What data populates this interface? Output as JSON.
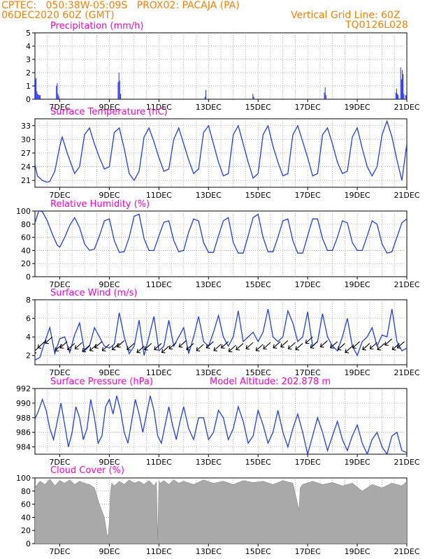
{
  "header": {
    "line1_left": "CPTEC:   050:38W-05:09S   PROX02: PACAJA (PA)",
    "line2_left": "06DEC2020 60Z (GMT)",
    "line2_right": "Vertical Grid Line: 60Z",
    "line3_right": "TQ0126L028"
  },
  "colors": {
    "header": "#ff7f00",
    "title": "#ff00cc",
    "series": "#1e3cff",
    "bars": "#1e2bff",
    "cloud": "#a9a9a9",
    "arrow": "#000000"
  },
  "x_tick_labels": [
    "7DEC",
    "9DEC",
    "11DEC",
    "13DEC",
    "15DEC",
    "17DEC",
    "19DEC",
    "21DEC"
  ],
  "chart_data": [
    {
      "id": "precip",
      "type": "bar",
      "title": "Precipitation (mm/h)",
      "ylim": [
        0,
        5
      ],
      "yticks": [
        "0",
        "1",
        "2",
        "3",
        "4",
        "5"
      ],
      "grid": true,
      "values": [
        1.5,
        1.6,
        0.6,
        0.4,
        0.35,
        0.3,
        0.3,
        0,
        0,
        0,
        0,
        0,
        0,
        0,
        0,
        0,
        0,
        0,
        0,
        0,
        0,
        0,
        0,
        0,
        0,
        0,
        1.0,
        1.2,
        0.4,
        0.2,
        0,
        0,
        0,
        0,
        0,
        0,
        0,
        0,
        0,
        0,
        0,
        0,
        0,
        0,
        0,
        0,
        0,
        0,
        0,
        0,
        0,
        0,
        0,
        0,
        0,
        0,
        0,
        0,
        0,
        0,
        0,
        0,
        0,
        0,
        0,
        0,
        0,
        0,
        0,
        0,
        0,
        0,
        0,
        0,
        0,
        0,
        0,
        0,
        0,
        0,
        0,
        0,
        0,
        0,
        0,
        0,
        0,
        0,
        0,
        0,
        0,
        0,
        0,
        0,
        0,
        0,
        0,
        0,
        0,
        0,
        0,
        0,
        1.3,
        2.0,
        1.4,
        0.4,
        0,
        0,
        0,
        0,
        0,
        0,
        0,
        0,
        0,
        0,
        0,
        0,
        0,
        0,
        0,
        0,
        0,
        0,
        0,
        0,
        0,
        0,
        0,
        0,
        0,
        0,
        0,
        0,
        0,
        0,
        0,
        0,
        0,
        0,
        0,
        0,
        0,
        0,
        0,
        0,
        0,
        0,
        0,
        0,
        0,
        0,
        0,
        0,
        0,
        0,
        0,
        0,
        0,
        0,
        0,
        0,
        0,
        0,
        0,
        0,
        0,
        0,
        0,
        0,
        0,
        0,
        0,
        0,
        0,
        0,
        0,
        0,
        0,
        0,
        0,
        0,
        0,
        0,
        0,
        0,
        0,
        0,
        0,
        0,
        0,
        0,
        0,
        0,
        0,
        0,
        0,
        0,
        0,
        0,
        0,
        0,
        0,
        0,
        0,
        0,
        0,
        0,
        0,
        0.2,
        0.7,
        0,
        0,
        0,
        0,
        0,
        0,
        0,
        0,
        0,
        0,
        0,
        0,
        0,
        0,
        0,
        0,
        0,
        0,
        0,
        0,
        0,
        0,
        0,
        0,
        0,
        0,
        0,
        0,
        0,
        0,
        0,
        0,
        0,
        0,
        0,
        0,
        0,
        0,
        0,
        0,
        0,
        0,
        0,
        0,
        0,
        0,
        0,
        0,
        0,
        0,
        0,
        0,
        0,
        0,
        0,
        0,
        0,
        0.4,
        0.2,
        0,
        0,
        0,
        0,
        0,
        0,
        0,
        0,
        0,
        0,
        0,
        0,
        0,
        0,
        0,
        0,
        0,
        0,
        0,
        0,
        0,
        0,
        0,
        0,
        0,
        0,
        0,
        0,
        0,
        0,
        0,
        0,
        0,
        0,
        0,
        0,
        0,
        0,
        0,
        0,
        0,
        0,
        0,
        0,
        0,
        0,
        0,
        0,
        0,
        0,
        0,
        0,
        0,
        0,
        0,
        0,
        0,
        0,
        0,
        0,
        0,
        0,
        0,
        0,
        0,
        0,
        0,
        0,
        0,
        0,
        0,
        0,
        0,
        0,
        0,
        0,
        0,
        0,
        0,
        0,
        0,
        0,
        0,
        0,
        0,
        0,
        0.5,
        0.9,
        0.3,
        0,
        0,
        0,
        0,
        0,
        0,
        0,
        0,
        0,
        0,
        0,
        0,
        0,
        0,
        0,
        0,
        0,
        0,
        0,
        0,
        0,
        0,
        0,
        0,
        0,
        0,
        0,
        0,
        0,
        0,
        0,
        0,
        0,
        0,
        0,
        0,
        0,
        0,
        0,
        0,
        0,
        0,
        0,
        0,
        0,
        0,
        0,
        0,
        0,
        0,
        0,
        0,
        0,
        0,
        0,
        0,
        0,
        0,
        0,
        0,
        0,
        0,
        0,
        0,
        0,
        0,
        0,
        0,
        0,
        0,
        0,
        0,
        0,
        0,
        0,
        0,
        0,
        0,
        0,
        0,
        0,
        0,
        0,
        0,
        0,
        0.5,
        0.8,
        0.4,
        0.3,
        0,
        0,
        2.4,
        1.5,
        2.2,
        1.9,
        0.4,
        0,
        0.3,
        0.3
      ]
    },
    {
      "id": "temp",
      "type": "line",
      "title": "Surface Temperature (nC)",
      "ylim": [
        19.5,
        34.5
      ],
      "yticks": [
        "21",
        "24",
        "27",
        "30",
        "33"
      ],
      "ytick_values": [
        21,
        24,
        27,
        30,
        33
      ],
      "grid": true,
      "x": [
        6.0,
        6.1,
        6.3,
        6.5,
        6.6,
        6.8,
        7.0,
        7.1,
        7.3,
        7.5,
        7.6,
        7.8,
        8.0,
        8.2,
        8.4,
        8.6,
        8.8,
        9.0,
        9.2,
        9.4,
        9.6,
        9.8,
        10.0,
        10.2,
        10.4,
        10.6,
        10.8,
        11.0,
        11.2,
        11.4,
        11.6,
        11.8,
        12.0,
        12.2,
        12.4,
        12.6,
        12.8,
        13.0,
        13.2,
        13.4,
        13.6,
        13.8,
        14.0,
        14.2,
        14.4,
        14.6,
        14.8,
        15.0,
        15.2,
        15.4,
        15.6,
        15.8,
        16.0,
        16.2,
        16.4,
        16.6,
        16.8,
        17.0,
        17.2,
        17.4,
        17.6,
        17.8,
        18.0,
        18.2,
        18.4,
        18.6,
        18.8,
        19.0,
        19.2,
        19.4,
        19.6,
        19.8,
        20.0,
        20.2,
        20.4,
        20.6,
        20.8,
        21.0
      ],
      "values": [
        24.5,
        22.0,
        21.0,
        20.6,
        20.8,
        23.0,
        28.5,
        30.5,
        27.0,
        24.0,
        22.5,
        24.0,
        31.0,
        32.5,
        29.0,
        26.0,
        23.5,
        24.0,
        31.5,
        32.5,
        28.0,
        22.5,
        21.0,
        23.0,
        30.5,
        32.5,
        29.5,
        26.0,
        23.0,
        23.5,
        30.0,
        32.5,
        29.0,
        25.5,
        22.5,
        23.5,
        31.5,
        33.0,
        29.0,
        25.0,
        22.0,
        22.5,
        31.0,
        33.0,
        29.0,
        25.0,
        21.5,
        22.5,
        31.0,
        33.0,
        28.5,
        25.0,
        22.0,
        22.5,
        31.0,
        33.0,
        29.5,
        26.0,
        22.0,
        22.5,
        31.0,
        32.5,
        29.0,
        25.0,
        22.5,
        23.0,
        30.5,
        32.5,
        28.0,
        24.0,
        22.0,
        24.0,
        31.0,
        34.0,
        30.5,
        25.5,
        21.0,
        29.0
      ]
    },
    {
      "id": "rh",
      "type": "line",
      "title": "Relative Humidity (%)",
      "ylim": [
        0,
        100
      ],
      "yticks": [
        "0",
        "20",
        "40",
        "60",
        "80",
        "100"
      ],
      "ytick_values": [
        0,
        20,
        40,
        60,
        80,
        100
      ],
      "grid": true,
      "x": [
        6.0,
        6.15,
        6.3,
        6.5,
        6.7,
        6.9,
        7.0,
        7.2,
        7.4,
        7.6,
        7.8,
        8.0,
        8.2,
        8.4,
        8.6,
        8.8,
        9.0,
        9.2,
        9.4,
        9.6,
        9.8,
        10.0,
        10.2,
        10.4,
        10.6,
        10.8,
        11.0,
        11.2,
        11.4,
        11.6,
        11.8,
        12.0,
        12.2,
        12.4,
        12.6,
        12.8,
        13.0,
        13.2,
        13.4,
        13.6,
        13.8,
        14.0,
        14.2,
        14.4,
        14.6,
        14.8,
        15.0,
        15.2,
        15.4,
        15.6,
        15.8,
        16.0,
        16.2,
        16.4,
        16.6,
        16.8,
        17.0,
        17.2,
        17.4,
        17.6,
        17.8,
        18.0,
        18.2,
        18.4,
        18.6,
        18.8,
        19.0,
        19.2,
        19.4,
        19.6,
        19.8,
        20.0,
        20.2,
        20.4,
        20.6,
        20.8,
        21.0
      ],
      "values": [
        82,
        100,
        99,
        85,
        65,
        48,
        45,
        60,
        78,
        90,
        75,
        50,
        40,
        42,
        62,
        85,
        88,
        55,
        37,
        38,
        60,
        92,
        95,
        58,
        40,
        40,
        62,
        83,
        85,
        55,
        38,
        40,
        68,
        88,
        85,
        52,
        37,
        37,
        62,
        85,
        90,
        52,
        36,
        36,
        62,
        90,
        95,
        60,
        38,
        38,
        60,
        85,
        88,
        55,
        36,
        36,
        62,
        88,
        88,
        58,
        40,
        40,
        60,
        85,
        82,
        52,
        40,
        40,
        62,
        85,
        80,
        50,
        36,
        38,
        60,
        82,
        88
      ]
    },
    {
      "id": "wind",
      "type": "line",
      "title": "Surface Wind (m/s)",
      "ylim": [
        1,
        8
      ],
      "yticks": [
        "2",
        "4",
        "6",
        "8"
      ],
      "ytick_values": [
        2,
        4,
        6,
        8
      ],
      "grid": true,
      "x": [
        6.0,
        6.2,
        6.4,
        6.6,
        6.8,
        7.0,
        7.2,
        7.4,
        7.6,
        7.8,
        8.0,
        8.2,
        8.4,
        8.6,
        8.8,
        9.0,
        9.2,
        9.4,
        9.6,
        9.8,
        10.0,
        10.2,
        10.4,
        10.6,
        10.8,
        11.0,
        11.2,
        11.4,
        11.6,
        11.8,
        12.0,
        12.2,
        12.4,
        12.6,
        12.8,
        13.0,
        13.2,
        13.4,
        13.6,
        13.8,
        14.0,
        14.2,
        14.4,
        14.6,
        14.8,
        15.0,
        15.2,
        15.4,
        15.6,
        15.8,
        16.0,
        16.2,
        16.4,
        16.6,
        16.8,
        17.0,
        17.2,
        17.4,
        17.6,
        17.8,
        18.0,
        18.2,
        18.4,
        18.6,
        18.8,
        19.0,
        19.2,
        19.4,
        19.6,
        19.8,
        20.0,
        20.2,
        20.4,
        20.6,
        20.8,
        21.0
      ],
      "values": [
        1.5,
        1.8,
        3.5,
        5.0,
        2.2,
        3.8,
        4.0,
        2.3,
        4.2,
        5.5,
        2.5,
        3.0,
        5.0,
        4.0,
        3.0,
        2.8,
        3.2,
        6.6,
        4.0,
        2.2,
        3.0,
        5.8,
        2.0,
        4.0,
        6.2,
        2.5,
        3.0,
        5.8,
        3.0,
        4.0,
        5.0,
        2.2,
        4.0,
        6.2,
        3.5,
        3.0,
        4.5,
        6.3,
        4.0,
        3.0,
        4.0,
        6.8,
        3.5,
        4.0,
        4.5,
        3.5,
        4.5,
        7.0,
        4.0,
        3.5,
        4.0,
        6.8,
        5.5,
        3.5,
        4.0,
        6.7,
        3.0,
        3.5,
        6.5,
        4.0,
        3.0,
        2.5,
        4.0,
        6.0,
        3.0,
        2.0,
        3.5,
        4.0,
        5.0,
        3.0,
        4.2,
        4.0,
        7.0,
        3.5,
        2.5,
        2.8
      ],
      "arrows_x": [
        6.2,
        6.4,
        6.7,
        7.1,
        7.3,
        7.6,
        7.9,
        8.2,
        8.5,
        8.7,
        9.0,
        9.4,
        9.6,
        10.0,
        10.4,
        10.7,
        11.1,
        11.4,
        11.7,
        12.1,
        12.4,
        12.8,
        13.2,
        13.5,
        13.8,
        14.1,
        14.4,
        14.8,
        15.2,
        15.5,
        15.9,
        16.2,
        16.5,
        16.8,
        17.2,
        17.4,
        17.8,
        18.2,
        18.5,
        18.8,
        19.1,
        19.5,
        19.8,
        20.1,
        20.4,
        20.7,
        20.9
      ],
      "arrows_y": [
        3.0,
        3.5,
        4.0,
        3.2,
        3.5,
        3.3,
        3.4,
        3.1,
        3.2,
        3.5,
        3.2,
        3.3,
        3.6,
        3.3,
        3.0,
        3.3,
        3.3,
        3.0,
        3.4,
        3.6,
        3.3,
        3.2,
        3.5,
        3.2,
        3.5,
        3.1,
        3.3,
        3.4,
        3.2,
        3.4,
        3.5,
        3.6,
        3.4,
        3.3,
        4.0,
        3.5,
        3.6,
        3.5,
        3.3,
        3.0,
        3.5,
        3.3,
        3.4,
        3.3,
        3.8,
        3.3,
        3.5
      ]
    },
    {
      "id": "pres",
      "type": "line",
      "title": "Surface Pressure (hPa)",
      "annotation": "Model Altitude: 202.878 m",
      "ylim": [
        983.0,
        992.0
      ],
      "yticks": [
        "984",
        "986",
        "988",
        "990",
        "992"
      ],
      "ytick_values": [
        984,
        986,
        988,
        990,
        992
      ],
      "grid": true,
      "x": [
        6.0,
        6.15,
        6.3,
        6.45,
        6.6,
        6.75,
        6.9,
        7.05,
        7.2,
        7.35,
        7.5,
        7.65,
        7.8,
        7.95,
        8.1,
        8.25,
        8.4,
        8.55,
        8.7,
        8.85,
        9.0,
        9.15,
        9.3,
        9.45,
        9.6,
        9.75,
        9.9,
        10.05,
        10.2,
        10.35,
        10.5,
        10.65,
        10.8,
        10.95,
        11.1,
        11.25,
        11.4,
        11.55,
        11.7,
        11.85,
        12.0,
        12.2,
        12.4,
        12.6,
        12.8,
        13.0,
        13.2,
        13.4,
        13.6,
        13.8,
        14.0,
        14.2,
        14.4,
        14.6,
        14.8,
        15.0,
        15.2,
        15.4,
        15.6,
        15.8,
        16.0,
        16.2,
        16.4,
        16.6,
        16.8,
        17.0,
        17.2,
        17.4,
        17.6,
        17.8,
        18.0,
        18.2,
        18.4,
        18.6,
        18.8,
        19.0,
        19.2,
        19.4,
        19.6,
        19.8,
        20.0,
        20.2,
        20.4,
        20.6,
        20.8,
        21.0
      ],
      "values": [
        987.8,
        989.0,
        990.5,
        989.0,
        986.5,
        985.0,
        987.5,
        990.0,
        987.0,
        984.0,
        986.0,
        989.5,
        988.0,
        985.0,
        986.5,
        990.5,
        988.0,
        984.5,
        985.5,
        989.5,
        990.5,
        988.5,
        991.0,
        989.0,
        986.0,
        984.5,
        987.5,
        990.5,
        988.5,
        986.0,
        988.5,
        991.0,
        989.0,
        985.5,
        984.5,
        987.0,
        989.5,
        987.0,
        985.0,
        987.5,
        989.5,
        986.5,
        985.0,
        988.0,
        988.0,
        985.0,
        986.0,
        989.0,
        988.0,
        985.0,
        986.5,
        989.5,
        987.5,
        984.5,
        985.5,
        989.0,
        987.0,
        984.5,
        986.0,
        989.0,
        986.0,
        984.0,
        986.5,
        988.5,
        986.0,
        983.0,
        985.5,
        988.0,
        986.0,
        983.5,
        985.5,
        987.5,
        985.0,
        983.5,
        985.5,
        987.0,
        984.5,
        983.0,
        985.0,
        986.0,
        984.0,
        983.0,
        985.5,
        986.0,
        983.5,
        983.2
      ]
    },
    {
      "id": "cloud",
      "type": "area",
      "title": "Cloud Cover (%)",
      "ylim": [
        0,
        100
      ],
      "yticks": [
        "0",
        "20",
        "40",
        "60",
        "80",
        "100"
      ],
      "ytick_values": [
        0,
        20,
        40,
        60,
        80,
        100
      ],
      "grid": true,
      "x": [
        6.0,
        6.2,
        6.4,
        6.6,
        6.8,
        7.0,
        7.2,
        7.4,
        7.6,
        7.8,
        8.0,
        8.2,
        8.4,
        8.6,
        8.8,
        8.9,
        8.95,
        9.0,
        9.05,
        9.1,
        9.2,
        9.4,
        9.6,
        9.8,
        10.0,
        10.2,
        10.4,
        10.6,
        10.8,
        10.9,
        10.95,
        11.0,
        11.05,
        11.2,
        11.4,
        11.6,
        11.8,
        12.0,
        12.4,
        12.8,
        13.2,
        13.6,
        14.0,
        14.4,
        14.8,
        15.2,
        15.6,
        16.0,
        16.4,
        16.6,
        16.65,
        16.7,
        16.8,
        17.2,
        17.6,
        18.0,
        18.4,
        18.8,
        19.2,
        19.6,
        20.0,
        20.4,
        20.8,
        21.0
      ],
      "values": [
        85,
        95,
        90,
        98,
        88,
        96,
        92,
        97,
        90,
        95,
        92,
        90,
        85,
        60,
        40,
        15,
        10,
        35,
        80,
        92,
        88,
        95,
        90,
        97,
        92,
        95,
        90,
        96,
        88,
        94,
        5,
        95,
        92,
        96,
        90,
        97,
        92,
        95,
        90,
        97,
        92,
        95,
        90,
        96,
        93,
        95,
        90,
        96,
        92,
        60,
        50,
        85,
        90,
        95,
        90,
        93,
        88,
        92,
        80,
        90,
        85,
        92,
        88,
        95
      ]
    }
  ]
}
